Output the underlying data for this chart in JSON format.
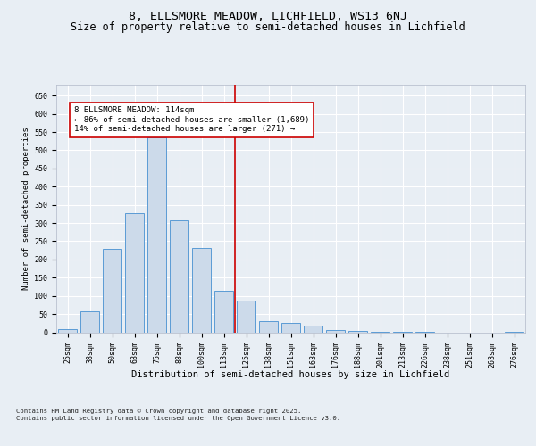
{
  "title1": "8, ELLSMORE MEADOW, LICHFIELD, WS13 6NJ",
  "title2": "Size of property relative to semi-detached houses in Lichfield",
  "xlabel": "Distribution of semi-detached houses by size in Lichfield",
  "ylabel": "Number of semi-detached properties",
  "footnote1": "Contains HM Land Registry data © Crown copyright and database right 2025.",
  "footnote2": "Contains public sector information licensed under the Open Government Licence v3.0.",
  "categories": [
    "25sqm",
    "38sqm",
    "50sqm",
    "63sqm",
    "75sqm",
    "88sqm",
    "100sqm",
    "113sqm",
    "125sqm",
    "138sqm",
    "151sqm",
    "163sqm",
    "176sqm",
    "188sqm",
    "201sqm",
    "213sqm",
    "226sqm",
    "238sqm",
    "251sqm",
    "263sqm",
    "276sqm"
  ],
  "values": [
    8,
    58,
    228,
    327,
    535,
    308,
    231,
    113,
    86,
    30,
    26,
    18,
    5,
    4,
    2,
    1,
    2,
    0,
    0,
    0,
    2
  ],
  "bar_color": "#ccdaea",
  "bar_edge_color": "#5b9bd5",
  "vline_color": "#cc0000",
  "annotation_text": "8 ELLSMORE MEADOW: 114sqm\n← 86% of semi-detached houses are smaller (1,689)\n14% of semi-detached houses are larger (271) →",
  "annotation_box_color": "#cc0000",
  "ylim": [
    0,
    680
  ],
  "yticks": [
    0,
    50,
    100,
    150,
    200,
    250,
    300,
    350,
    400,
    450,
    500,
    550,
    600,
    650
  ],
  "background_color": "#e8eef4",
  "grid_color": "#ffffff",
  "title1_fontsize": 9.5,
  "title2_fontsize": 8.5,
  "xlabel_fontsize": 7.5,
  "ylabel_fontsize": 6.5,
  "tick_fontsize": 6,
  "annot_fontsize": 6.5
}
